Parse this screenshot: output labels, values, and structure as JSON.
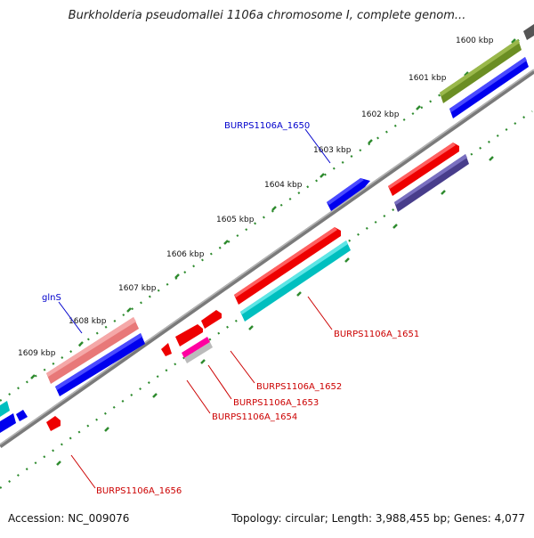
{
  "title": "Burkholderia pseudomallei 1106a chromosome I, complete genom...",
  "accession": "Accession: NC_009076",
  "topology": "Topology: circular; Length: 3,988,455 bp; Genes: 4,077",
  "ticks": [
    "1600 kbp",
    "1601 kbp",
    "1602 kbp",
    "1603 kbp",
    "1604 kbp",
    "1605 kbp",
    "1606 kbp",
    "1607 kbp",
    "1608 kbp",
    "1609 kbp"
  ],
  "gene_labels": {
    "g1650": "BURPS1106A_1650",
    "glnS": "glnS",
    "g1651": "BURPS1106A_1651",
    "g1652": "BURPS1106A_1652",
    "g1653": "BURPS1106A_1653",
    "g1654": "BURPS1106A_1654",
    "g1656": "BURPS1106A_1656"
  },
  "colors": {
    "backbone": "#808080",
    "forward_gene": "#ff0000",
    "reverse_gene": "#0000ff",
    "tick": "#2e8b2e",
    "label_forward": "#cc0000",
    "label_reverse": "#0000cc"
  }
}
